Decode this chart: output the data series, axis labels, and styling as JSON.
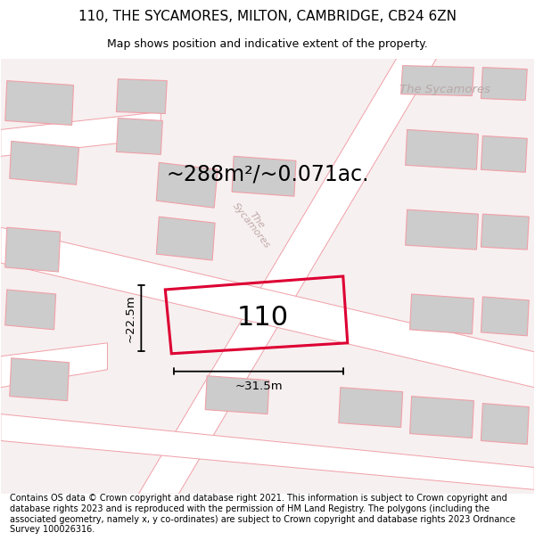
{
  "title": "110, THE SYCAMORES, MILTON, CAMBRIDGE, CB24 6ZN",
  "subtitle": "Map shows position and indicative extent of the property.",
  "area_text": "~288m²/~0.071ac.",
  "property_number": "110",
  "dim_width": "~31.5m",
  "dim_height": "~22.5m",
  "road_label_main": "The Sycamores",
  "road_label_diag": "Sycamores",
  "footer": "Contains OS data © Crown copyright and database right 2021. This information is subject to Crown copyright and database rights 2023 and is reproduced with the permission of HM Land Registry. The polygons (including the associated geometry, namely x, y co-ordinates) are subject to Crown copyright and database rights 2023 Ordnance Survey 100026316.",
  "bg_color": "#ffffff",
  "map_bg": "#f7f0f0",
  "building_color": "#cccccc",
  "highlight_color": "#dd0033",
  "road_fill": "#ffffff",
  "line_color": "#f0a0a8",
  "title_fontsize": 11,
  "subtitle_fontsize": 9,
  "area_fontsize": 17,
  "property_num_fontsize": 22,
  "footer_fontsize": 7.0
}
